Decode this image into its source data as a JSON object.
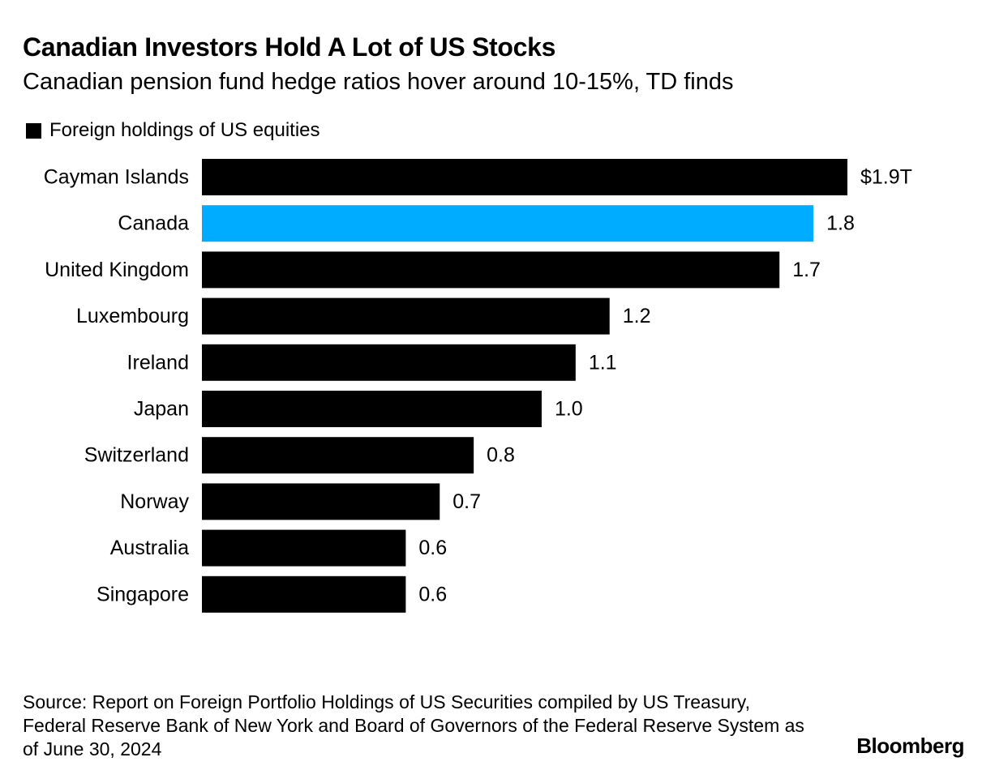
{
  "header": {
    "title": "Canadian Investors Hold A Lot of US Stocks",
    "subtitle": "Canadian pension fund hedge ratios hover around 10-15%, TD finds"
  },
  "legend": {
    "label": "Foreign holdings of US equities",
    "color": "#000000"
  },
  "colors": {
    "default_bar": "#000000",
    "highlight_bar": "#00acff"
  },
  "chart_data": {
    "type": "bar",
    "orientation": "horizontal",
    "title": "Canadian Investors Hold A Lot of US Stocks",
    "subtitle": "Canadian pension fund hedge ratios hover around 10-15%, TD finds",
    "xlabel": "",
    "ylabel": "",
    "unit": "trillion USD",
    "xlim": [
      0,
      1.9
    ],
    "grid": false,
    "legend_position": "top-left",
    "highlight": "Canada",
    "categories": [
      "Cayman Islands",
      "Canada",
      "United Kingdom",
      "Luxembourg",
      "Ireland",
      "Japan",
      "Switzerland",
      "Norway",
      "Australia",
      "Singapore"
    ],
    "series": [
      {
        "name": "Foreign holdings of US equities",
        "values": [
          1.9,
          1.8,
          1.7,
          1.2,
          1.1,
          1.0,
          0.8,
          0.7,
          0.6,
          0.6
        ],
        "labels": [
          "$1.9T",
          "1.8",
          "1.7",
          "1.2",
          "1.1",
          "1.0",
          "0.8",
          "0.7",
          "0.6",
          "0.6"
        ]
      }
    ]
  },
  "footer": {
    "source": "Source: Report on Foreign Portfolio Holdings of US Securities compiled by US Treasury, Federal Reserve Bank of New York and Board of Governors of the Federal Reserve System as of June 30, 2024",
    "logo": "Bloomberg"
  }
}
